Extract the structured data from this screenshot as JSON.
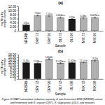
{
  "chart_data": [
    {
      "type": "bar",
      "title": "(a)",
      "xlabel": "Sample",
      "ylabel": "mg TEq dry weight sample",
      "categories": [
        "NFBRB",
        "ORY 72",
        "ORY 96",
        "OLI 72",
        "OLI 96",
        "MIX 72",
        "MIX 96"
      ],
      "values": [
        2.81,
        7.505,
        7.27,
        6.464,
        5.79,
        6.28,
        6.467
      ],
      "value_labels": [
        "2.81a",
        "7.505c",
        "7.27ca",
        "6.464bca",
        "5.79b",
        "6.28bc",
        "6.467bca"
      ],
      "errors": [
        0.08,
        0.28,
        0.22,
        0.28,
        0.18,
        0.22,
        0.25
      ],
      "colors": [
        "#1a1a1a",
        "#b0b0b0",
        "#b0b0b0",
        "#b0b0b0",
        "#1a1a1a",
        "#b0b0b0",
        "#b0b0b0"
      ],
      "data_labels": true,
      "grid": false,
      "ylim": [
        0,
        12.0
      ],
      "yticks": [
        0,
        {
          "value": 2.0,
          "label": "2.00"
        },
        {
          "value": 4.0,
          "label": "4.00"
        },
        {
          "value": 6.0,
          "label": "6.00"
        },
        {
          "value": 8.0,
          "label": "8.00"
        },
        {
          "value": 10.0,
          "label": "10.00"
        },
        {
          "value": 12.0,
          "label": "12.00"
        }
      ]
    },
    {
      "type": "bar",
      "title": "(b)",
      "xlabel": "Sample",
      "ylabel": "mg TEq dry weight sample",
      "categories": [
        "NFBRB",
        "ORY 72",
        "ORY 96",
        "OLI 72",
        "OLI 96",
        "MIX 72",
        "MIX 96"
      ],
      "values": [
        11.91,
        11.48,
        14.604,
        11.675,
        11.925,
        12.17,
        13.55
      ],
      "value_labels": [
        "11.91a",
        "11.48bca",
        "14.604c",
        "11.675bca",
        "11.925bc",
        "12.17cd",
        "13.55y"
      ],
      "errors": [
        0.22,
        0.28,
        0.45,
        0.32,
        0.28,
        0.28,
        0.38
      ],
      "colors": [
        "#1a1a1a",
        "#1a1a1a",
        "#b0b0b0",
        "#b0b0b0",
        "#1a1a1a",
        "#b0b0b0",
        "#b0b0b0"
      ],
      "data_labels": true,
      "grid": false,
      "ylim": [
        0,
        18.0
      ],
      "yticks": [
        0,
        {
          "value": 2.0,
          "label": "2.00"
        },
        {
          "value": 4.0,
          "label": "4.00"
        },
        {
          "value": 6.0,
          "label": "6.00"
        },
        {
          "value": 8.0,
          "label": "8.00"
        },
        {
          "value": 10.0,
          "label": "10.00"
        },
        {
          "value": 12.0,
          "label": "12.00"
        },
        {
          "value": 14.0,
          "label": "14.00"
        },
        {
          "value": 16.0,
          "label": "16.00"
        },
        {
          "value": 18.0,
          "label": "18.00"
        }
      ]
    }
  ],
  "caption": "Figure 3 FRAP antioxidant reduction capacity of non-fermented BRB (NFBRB) extract and fermented with R. oryzae (ORY), R. oligosporus (OLI), and mixtures"
}
